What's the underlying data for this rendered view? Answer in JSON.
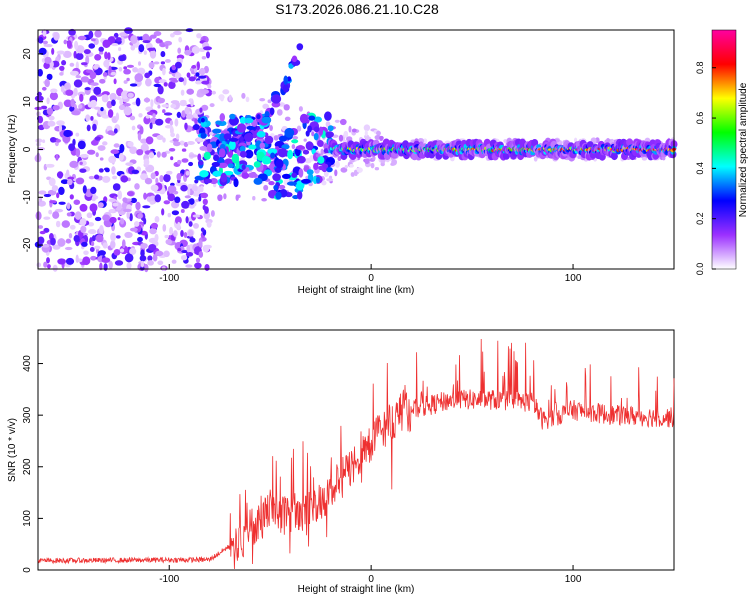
{
  "title": "S173.2026.086.21.10.C28",
  "chart_data": [
    {
      "type": "heatmap",
      "name": "spectrogram",
      "xlabel": "Height of straight line (km)",
      "ylabel": "Frequency (Hz)",
      "xlim": [
        -165,
        150
      ],
      "ylim": [
        -25,
        25
      ],
      "xticks": [
        -100,
        0,
        100
      ],
      "yticks": [
        -20,
        -10,
        0,
        10,
        20
      ],
      "colorbar": {
        "label": "Normalized spectral amplitude",
        "range": [
          0,
          0.95
        ],
        "ticks": [
          0.0,
          0.2,
          0.4,
          0.6,
          0.8
        ],
        "colors": [
          "#ffffff",
          "#9b30ff",
          "#0000ff",
          "#00ffff",
          "#00ff00",
          "#ffff00",
          "#ff0000",
          "#ff00a0"
        ]
      },
      "ridge": {
        "description": "Main spectral line near 0 Hz",
        "x_start": -20,
        "x_end": 150,
        "frequency": 0,
        "amplitude": 0.7
      },
      "noise_region": {
        "x_start": -165,
        "x_end": -80,
        "amplitude": 0.15
      },
      "branch": {
        "x_start": -75,
        "x_end": -35,
        "freq_start": 0,
        "freq_end": 21
      }
    },
    {
      "type": "line",
      "name": "snr",
      "xlabel": "Height of straight line (km)",
      "ylabel": "SNR (10 * v/v)",
      "xlim": [
        -165,
        150
      ],
      "ylim": [
        0,
        465
      ],
      "xticks": [
        -100,
        0,
        100
      ],
      "yticks": [
        0,
        100,
        200,
        300,
        400
      ],
      "color": "#ee3030",
      "envelope": {
        "x": [
          -165,
          -80,
          -65,
          -50,
          -40,
          -30,
          -20,
          -10,
          0,
          10,
          20,
          30,
          40,
          60,
          80,
          85,
          100,
          120,
          150
        ],
        "y": [
          18,
          20,
          60,
          120,
          110,
          120,
          150,
          200,
          250,
          290,
          310,
          320,
          330,
          330,
          325,
          290,
          310,
          300,
          295
        ]
      }
    }
  ]
}
